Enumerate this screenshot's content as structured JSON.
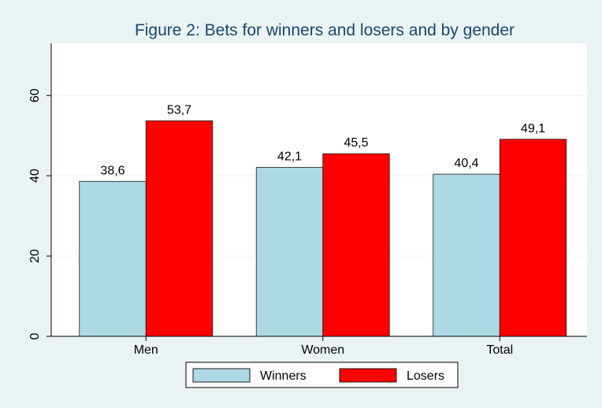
{
  "chart_data": {
    "type": "bar",
    "title": "Figure 2: Bets for winners and losers and by gender",
    "categories": [
      "Men",
      "Women",
      "Total"
    ],
    "series": [
      {
        "name": "Winners",
        "color": "#add8e6",
        "values": [
          38.6,
          42.1,
          40.4
        ],
        "value_labels": [
          "38,6",
          "42,1",
          "40,4"
        ]
      },
      {
        "name": "Losers",
        "color": "#ff0000",
        "values": [
          53.7,
          45.5,
          49.1
        ],
        "value_labels": [
          "53,7",
          "45,5",
          "49,1"
        ]
      }
    ],
    "ylim": [
      0,
      73
    ],
    "yticks": [
      0,
      20,
      40,
      60
    ],
    "grid": true,
    "legend": "bottom"
  }
}
